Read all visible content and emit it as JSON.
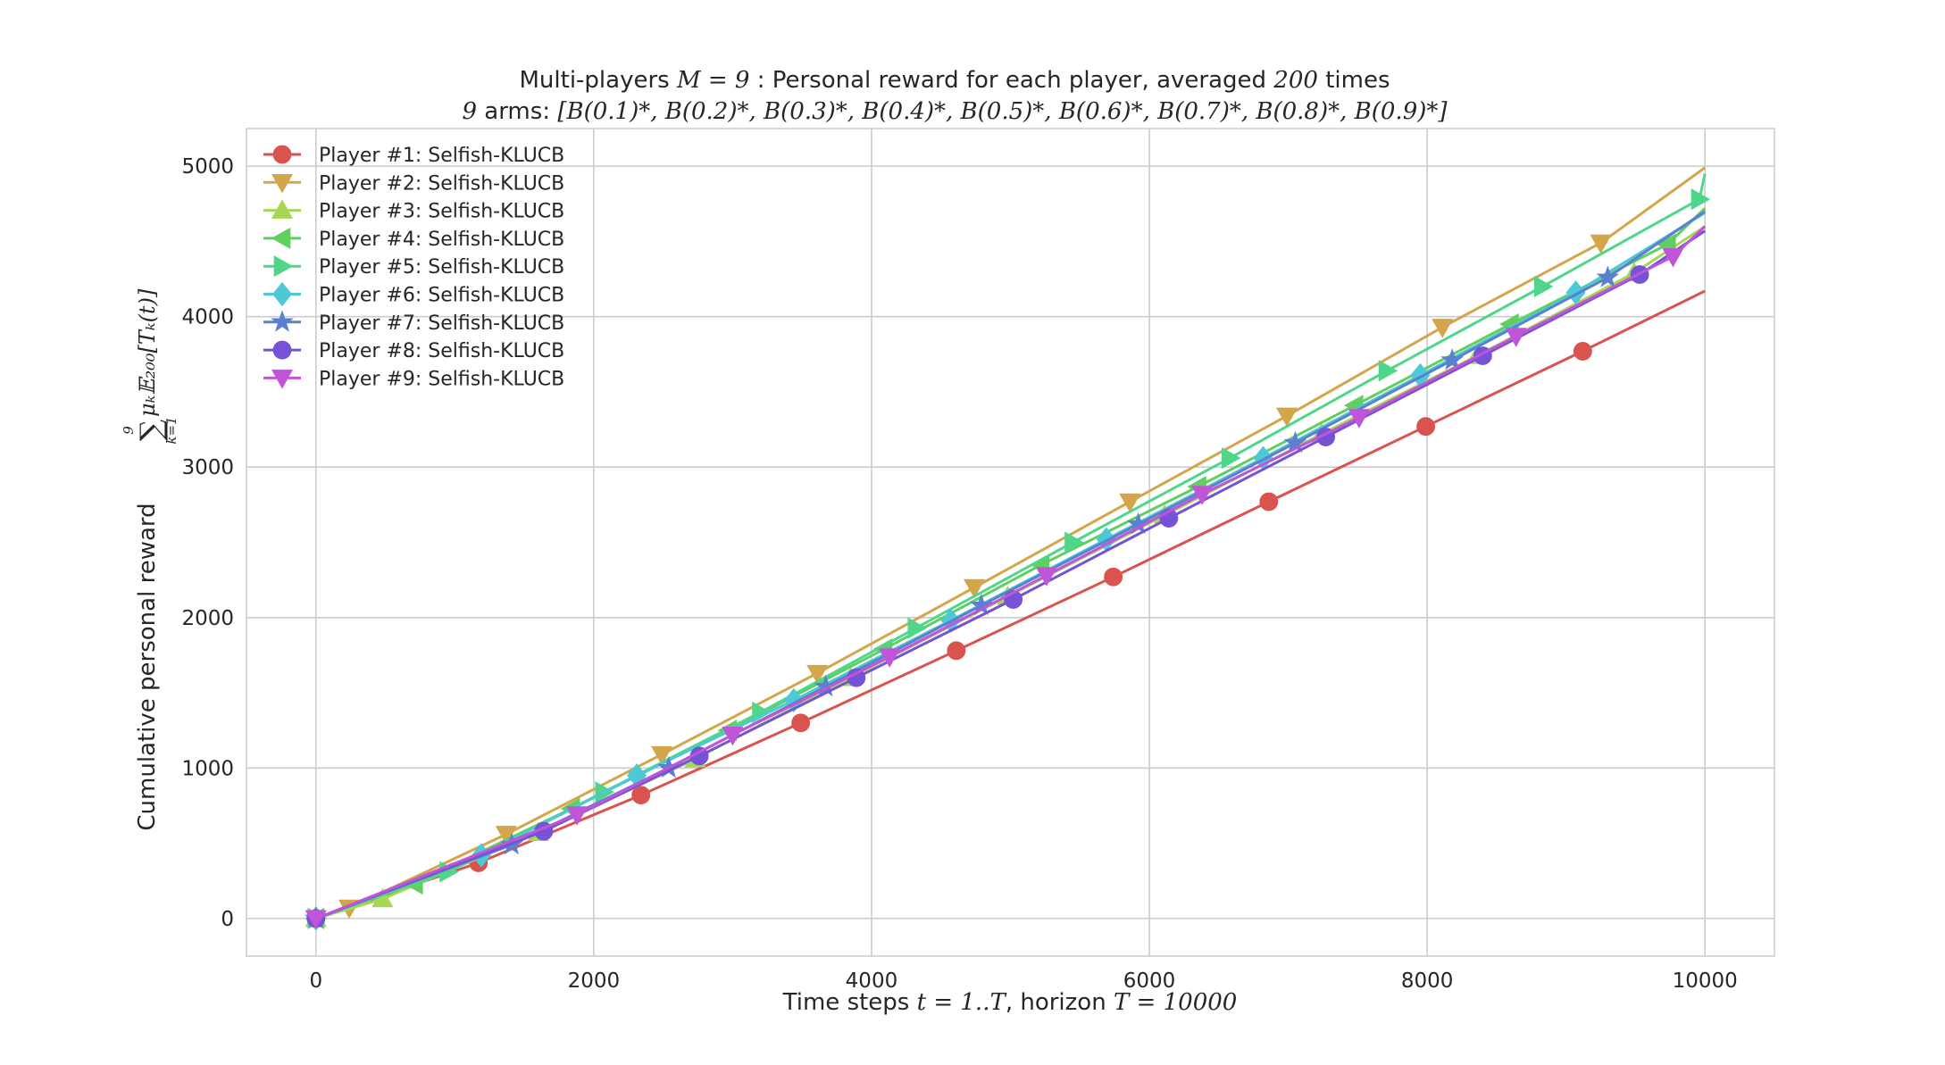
{
  "colors": {
    "background": "#ffffff",
    "grid": "#cccccc",
    "frame": "#cccccc",
    "text": "#262626"
  },
  "chart_data": {
    "type": "line",
    "title": {
      "line1_prefix": "Multi-players ",
      "line1_math": "M = 9",
      "line1_suffix": " : Personal reward for each player, averaged ",
      "line1_math2": "200",
      "line1_end": " times",
      "line2_math_prefix": "9",
      "line2_text": " arms: ",
      "line2_math": "[B(0.1)*, B(0.2)*, B(0.3)*, B(0.4)*, B(0.5)*, B(0.6)*, B(0.7)*, B(0.8)*, B(0.9)*]"
    },
    "xlabel": {
      "prefix": "Time steps ",
      "math": "t = 1..T",
      "middle": ", horizon ",
      "math2": "T = 10000"
    },
    "ylabel": {
      "text": "Cumulative personal reward ",
      "math": "Σ μ_k E_200[T_k(t)]",
      "sum_top": "9",
      "sum_bottom": "k=1"
    },
    "xlim": [
      -500,
      10500
    ],
    "ylim": [
      -250,
      5250
    ],
    "xticks": [
      0,
      2000,
      4000,
      6000,
      8000,
      10000
    ],
    "yticks": [
      0,
      1000,
      2000,
      3000,
      4000,
      5000
    ],
    "grid": true,
    "legend_position": "upper left",
    "series": [
      {
        "name": "Player #1: Selfish-KLUCB",
        "color": "#d9534f",
        "marker": "circle",
        "x": [
          0,
          1170,
          2340,
          3490,
          4610,
          5740,
          6860,
          7990,
          9120,
          10000
        ],
        "y": [
          0,
          370,
          820,
          1300,
          1780,
          2270,
          2770,
          3270,
          3770,
          4170
        ]
      },
      {
        "name": "Player #2: Selfish-KLUCB",
        "color": "#d4a54a",
        "marker": "triangle-down",
        "x": [
          0,
          240,
          1370,
          2490,
          3610,
          4740,
          5860,
          6990,
          8110,
          9250,
          10000
        ],
        "y": [
          0,
          70,
          560,
          1090,
          1630,
          2200,
          2770,
          3340,
          3930,
          4490,
          4990
        ]
      },
      {
        "name": "Player #3: Selfish-KLUCB",
        "color": "#a6d854",
        "marker": "triangle-up",
        "x": [
          0,
          480,
          1600,
          2730,
          3850,
          4980,
          6110,
          7240,
          8360,
          9490,
          10000
        ],
        "y": [
          0,
          130,
          570,
          1060,
          1600,
          2140,
          2680,
          3220,
          3740,
          4290,
          4600
        ]
      },
      {
        "name": "Player #4: Selfish-KLUCB",
        "color": "#5fcf5f",
        "marker": "triangle-left",
        "x": [
          0,
          710,
          1840,
          2970,
          4090,
          5220,
          6350,
          7480,
          8600,
          9730,
          10000
        ],
        "y": [
          0,
          230,
          730,
          1250,
          1790,
          2350,
          2870,
          3410,
          3950,
          4480,
          4720
        ]
      },
      {
        "name": "Player #5: Selfish-KLUCB",
        "color": "#4fd68a",
        "marker": "triangle-right",
        "x": [
          0,
          950,
          2070,
          3200,
          4320,
          5450,
          6580,
          7710,
          8830,
          9960,
          10000
        ],
        "y": [
          0,
          310,
          840,
          1370,
          1930,
          2500,
          3060,
          3640,
          4200,
          4780,
          4950
        ]
      },
      {
        "name": "Player #6: Selfish-KLUCB",
        "color": "#4cc9d4",
        "marker": "diamond",
        "x": [
          0,
          1190,
          2310,
          3440,
          4570,
          5690,
          6820,
          7950,
          9070,
          10000
        ],
        "y": [
          0,
          420,
          950,
          1450,
          1980,
          2520,
          3060,
          3610,
          4160,
          4690
        ]
      },
      {
        "name": "Player #7: Selfish-KLUCB",
        "color": "#5b7fd1",
        "marker": "star",
        "x": [
          0,
          1410,
          2540,
          3670,
          4790,
          5920,
          7050,
          8180,
          9300,
          10000
        ],
        "y": [
          0,
          490,
          1000,
          1540,
          2080,
          2620,
          3160,
          3710,
          4260,
          4700
        ]
      },
      {
        "name": "Player #8: Selfish-KLUCB",
        "color": "#7652d6",
        "marker": "circle",
        "x": [
          0,
          1640,
          2760,
          3890,
          5020,
          6140,
          7270,
          8400,
          9530,
          10000
        ],
        "y": [
          0,
          580,
          1080,
          1600,
          2120,
          2660,
          3200,
          3740,
          4280,
          4570
        ]
      },
      {
        "name": "Player #9: Selfish-KLUCB",
        "color": "#c055d8",
        "marker": "triangle-down",
        "x": [
          0,
          1880,
          3000,
          4130,
          5260,
          6380,
          7510,
          8640,
          9770,
          10000
        ],
        "y": [
          0,
          690,
          1220,
          1740,
          2280,
          2820,
          3330,
          3870,
          4400,
          4600
        ]
      }
    ]
  }
}
